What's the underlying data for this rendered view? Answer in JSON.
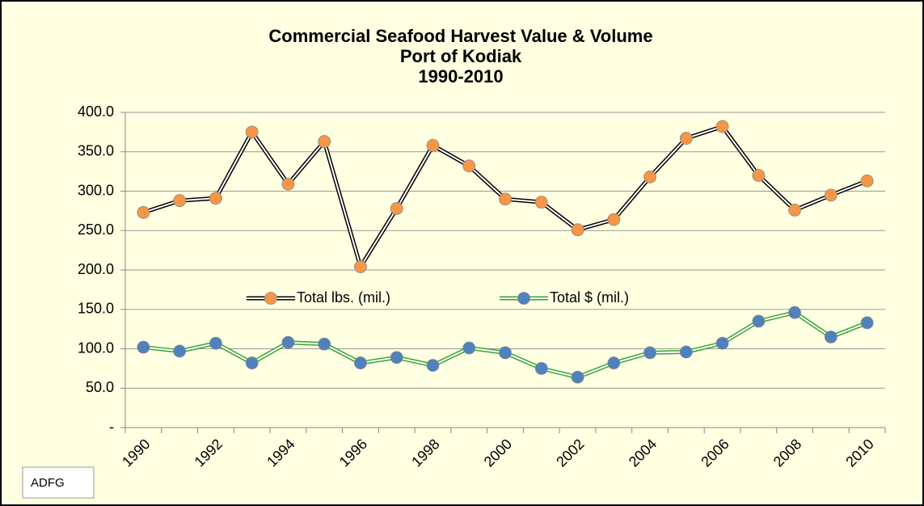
{
  "chart_data": {
    "type": "line",
    "title": [
      "Commercial Seafood Harvest Value & Volume",
      "Port of Kodiak",
      "1990-2010"
    ],
    "categories": [
      "1990",
      null,
      "1992",
      null,
      "1994",
      null,
      "1996",
      null,
      "1998",
      null,
      "2000",
      null,
      "2002",
      null,
      "2004",
      null,
      "2006",
      null,
      "2008",
      null,
      "2010"
    ],
    "series": [
      {
        "name": "Total lbs. (mil.)",
        "color": "#000000",
        "marker_color": "#f79646",
        "values": [
          273,
          288,
          291,
          375,
          309,
          363,
          204,
          278,
          358,
          332,
          290,
          286,
          251,
          264,
          318,
          367,
          382,
          320,
          276,
          295,
          313
        ]
      },
      {
        "name": "Total $ (mil.)",
        "color": "#3aa335",
        "marker_color": "#4f81bd",
        "values": [
          102,
          97,
          107,
          82,
          108,
          106,
          82,
          89,
          79,
          101,
          95,
          75,
          64,
          82,
          95,
          96,
          107,
          135,
          146,
          115,
          133
        ]
      }
    ],
    "ylim": [
      0,
      400
    ],
    "yticks": [
      {
        "value": 0,
        "label": "-"
      },
      {
        "value": 50,
        "label": "50.0"
      },
      {
        "value": 100,
        "label": "100.0"
      },
      {
        "value": 150,
        "label": "150.0"
      },
      {
        "value": 200,
        "label": "200.0"
      },
      {
        "value": 250,
        "label": "250.0"
      },
      {
        "value": 300,
        "label": "300.0"
      },
      {
        "value": 350,
        "label": "350.0"
      },
      {
        "value": 400,
        "label": "400.0"
      }
    ],
    "grid": true,
    "annotation": "ADFG"
  }
}
